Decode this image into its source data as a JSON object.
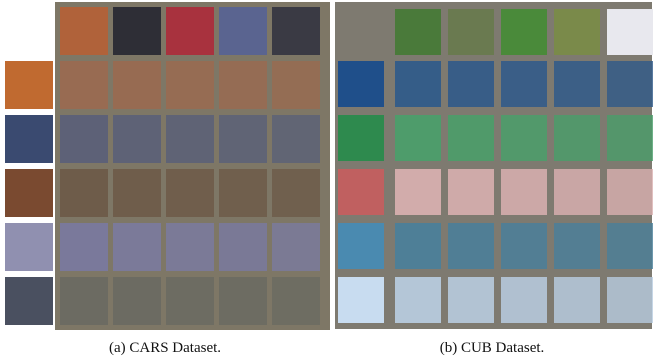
{
  "figure": {
    "captions": [
      "(a) CARS Dataset.",
      "(b) CUB Dataset."
    ]
  }
}
